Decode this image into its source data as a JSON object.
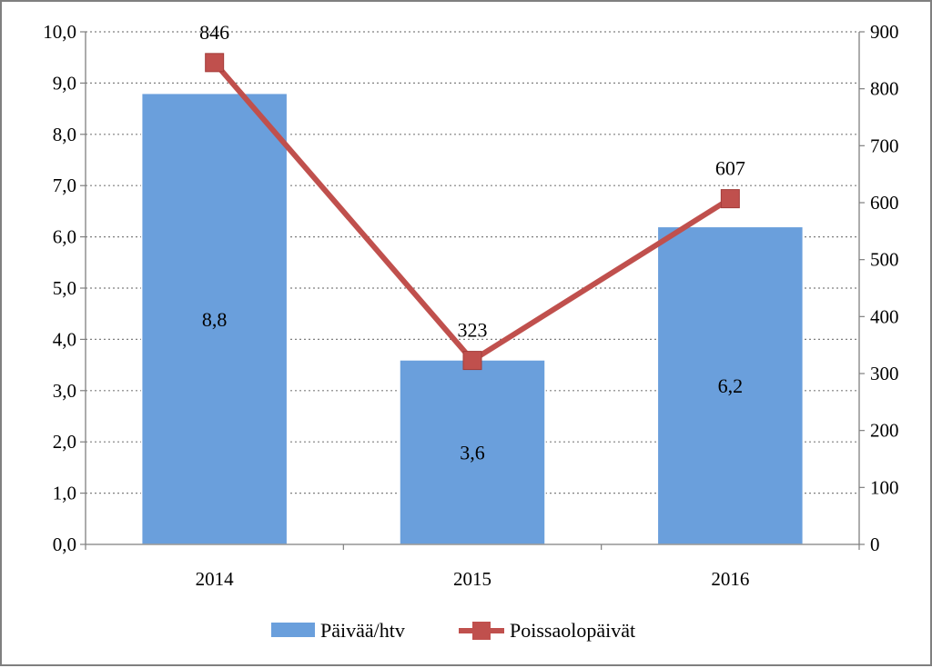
{
  "chart_data": {
    "type": "bar",
    "categories": [
      "2014",
      "2015",
      "2016"
    ],
    "series": [
      {
        "name": "Päivää/htv",
        "type": "bar",
        "axis": "left",
        "values": [
          8.8,
          3.6,
          6.2
        ],
        "labels": [
          "8,8",
          "3,6",
          "6,2"
        ],
        "color": "#6a9fdc"
      },
      {
        "name": "Poissaolopäivät",
        "type": "line",
        "axis": "right",
        "values": [
          846,
          323,
          607
        ],
        "labels": [
          "846",
          "323",
          "607"
        ],
        "color": "#c0504d",
        "marker": "square"
      }
    ],
    "y_left": {
      "range": [
        0,
        10
      ],
      "ticks": [
        0,
        1,
        2,
        3,
        4,
        5,
        6,
        7,
        8,
        9,
        10
      ],
      "tick_labels": [
        "0,0",
        "1,0",
        "2,0",
        "3,0",
        "4,0",
        "5,0",
        "6,0",
        "7,0",
        "8,0",
        "9,0",
        "10,0"
      ]
    },
    "y_right": {
      "range": [
        0,
        900
      ],
      "ticks": [
        0,
        100,
        200,
        300,
        400,
        500,
        600,
        700,
        800,
        900
      ],
      "tick_labels": [
        "0",
        "100",
        "200",
        "300",
        "400",
        "500",
        "600",
        "700",
        "800",
        "900"
      ]
    },
    "grid": "horizontal dotted",
    "legend": "bottom",
    "title": "",
    "xlabel": "",
    "ylabel": ""
  }
}
